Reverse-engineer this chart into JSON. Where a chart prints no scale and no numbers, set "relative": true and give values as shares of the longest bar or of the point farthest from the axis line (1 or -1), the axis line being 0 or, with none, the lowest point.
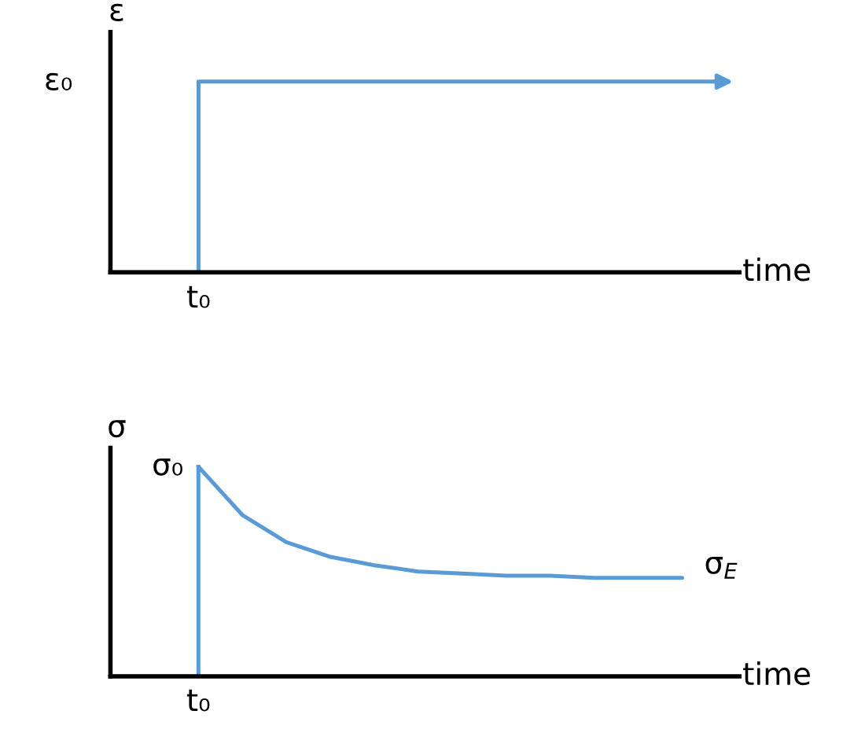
{
  "chart_data": [
    {
      "type": "line",
      "relative": true,
      "xlabel": "time",
      "ylabel": "ε",
      "annotations": [
        "t₀",
        "ε₀"
      ],
      "categories": [
        null,
        null,
        null,
        null,
        null,
        null,
        null,
        null
      ],
      "series": [
        {
          "type": "step",
          "color": "#5b9bd5",
          "values": [
            0,
            1,
            1,
            1,
            1,
            1,
            1,
            1
          ]
        }
      ]
    },
    {
      "type": "line",
      "relative": true,
      "xlabel": "time",
      "ylabel": "σ",
      "annotations": [
        "t₀",
        "σ₀",
        "σ$_{E}$"
      ],
      "categories": [
        null,
        null,
        null,
        null,
        null,
        null,
        null,
        null,
        null,
        null,
        null,
        null,
        null,
        null
      ],
      "series": [
        {
          "type": "step",
          "color": "#5b9bd5",
          "values": [
            0,
            null,
            1,
            null,
            null,
            null,
            null,
            null,
            null,
            null,
            null,
            null,
            null,
            null
          ]
        },
        {
          "color": "#5b9bd5",
          "values": [
            null,
            null,
            1,
            0.77,
            0.64,
            0.57,
            0.53,
            0.5,
            0.49,
            0.48,
            0.48,
            0.47,
            0.47,
            0.47
          ]
        }
      ]
    }
  ]
}
